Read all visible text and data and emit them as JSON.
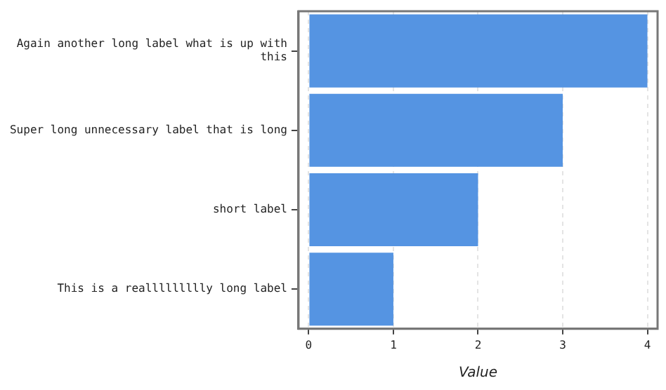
{
  "chart_data": {
    "type": "bar",
    "orientation": "horizontal",
    "categories": [
      "Again another long label what is up with this",
      "Super long unnecessary label that is long",
      "short label",
      "This is a reallllllllly long label"
    ],
    "values": [
      4,
      3,
      2,
      1
    ],
    "color": "#5594e2",
    "xlabel": "Value",
    "xlim": [
      -0.12,
      4.12
    ],
    "xticks": [
      0,
      1,
      2,
      3,
      4
    ],
    "grid": "x",
    "legend": false
  }
}
